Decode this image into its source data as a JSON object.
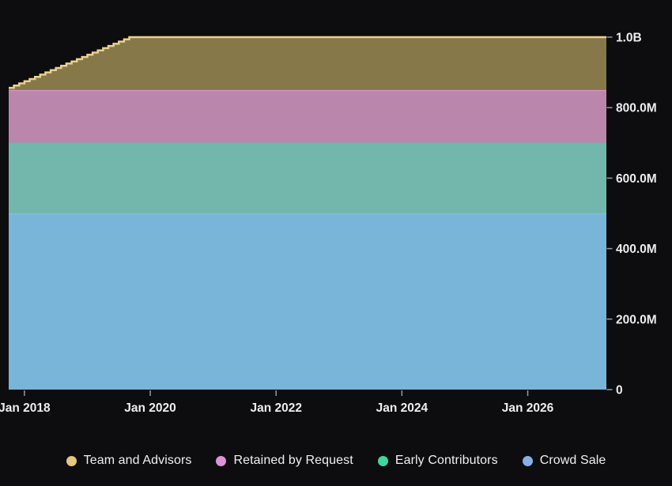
{
  "colors": {
    "background": "#0d0d0f",
    "axis_label": "#ededed",
    "tick": "#9a9a9a"
  },
  "chart_data": {
    "type": "area",
    "stacked": true,
    "title": "",
    "xlabel": "",
    "ylabel": "",
    "grid": false,
    "legend_position": "bottom-center",
    "x_domain": [
      "Oct 2017",
      "Apr 2027"
    ],
    "x_months_total": 114,
    "ylim": [
      0,
      1000000000
    ],
    "x_ticks": [
      {
        "label": "Jan 2018",
        "month": 3
      },
      {
        "label": "Jan 2020",
        "month": 27
      },
      {
        "label": "Jan 2022",
        "month": 51
      },
      {
        "label": "Jan 2024",
        "month": 75
      },
      {
        "label": "Jan 2026",
        "month": 99
      }
    ],
    "y_ticks": [
      {
        "label": "0",
        "value": 0
      },
      {
        "label": "200.0M",
        "value": 200000000
      },
      {
        "label": "400.0M",
        "value": 400000000
      },
      {
        "label": "600.0M",
        "value": 600000000
      },
      {
        "label": "800.0M",
        "value": 800000000
      },
      {
        "label": "1.0B",
        "value": 1000000000
      }
    ],
    "series_bottom_to_top": [
      {
        "name": "Crowd Sale",
        "profile": "constant",
        "value": 500000000,
        "fill": "#79b4d9",
        "edge": "#88bfe0"
      },
      {
        "name": "Early Contributors",
        "profile": "constant",
        "value": 200000000,
        "fill": "#73b6ac",
        "edge": "#3ed0a4"
      },
      {
        "name": "Retained by Request",
        "profile": "constant",
        "value": 150000000,
        "fill": "#bb86ac",
        "edge": "#d893cf"
      },
      {
        "name": "Team and Advisors",
        "profile": "monthly_step_vesting",
        "start_value": 6250000,
        "step_value": 6250000,
        "final_value": 150000000,
        "vesting_months": 24,
        "fill": "#867849",
        "edge": "#ecd18c"
      }
    ],
    "legend": [
      {
        "label": "Team and Advisors",
        "color": "#e4c581"
      },
      {
        "label": "Retained by Request",
        "color": "#dc92d8"
      },
      {
        "label": "Early Contributors",
        "color": "#3ed89c"
      },
      {
        "label": "Crowd Sale",
        "color": "#85b0e8"
      }
    ]
  }
}
